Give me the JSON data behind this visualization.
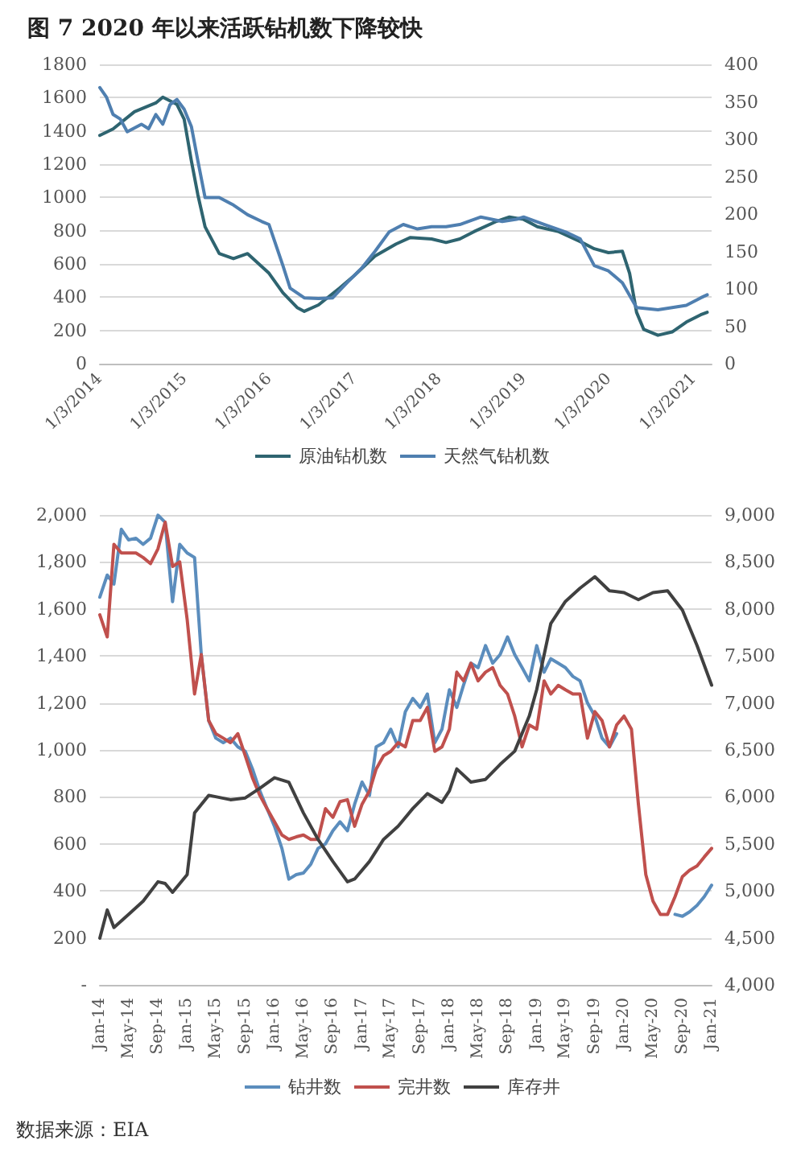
{
  "chart_data": [
    {
      "type": "line",
      "title": "图 7 2020 年以来活跃钻机数下降较快",
      "legend": "bottom",
      "grid": "y",
      "marker": "none",
      "line_style": "solid",
      "xlim": [
        "2014-01-03",
        "2021-03-20"
      ],
      "xticks": [
        {
          "value": "2014-01-03",
          "label": "1/3/2014"
        },
        {
          "value": "2015-01-03",
          "label": "1/3/2015"
        },
        {
          "value": "2016-01-03",
          "label": "1/3/2016"
        },
        {
          "value": "2017-01-03",
          "label": "1/3/2017"
        },
        {
          "value": "2018-01-03",
          "label": "1/3/2018"
        },
        {
          "value": "2019-01-03",
          "label": "1/3/2019"
        },
        {
          "value": "2020-01-03",
          "label": "1/3/2020"
        },
        {
          "value": "2021-01-03",
          "label": "1/3/2021"
        }
      ],
      "ylim": [
        0,
        1800
      ],
      "yticks": [
        0,
        200,
        400,
        600,
        800,
        1000,
        1200,
        1400,
        1600,
        1800
      ],
      "y2lim": [
        0,
        400
      ],
      "y2ticks": [
        0,
        50,
        100,
        150,
        200,
        250,
        300,
        350,
        400
      ],
      "series": [
        {
          "name": "原油钻机数",
          "color": "#2e6470",
          "x": [
            "2014-01-03",
            "2014-03",
            "2014-06",
            "2014-09",
            "2014-10",
            "2014-12",
            "2015-01",
            "2015-02",
            "2015-03",
            "2015-04",
            "2015-06",
            "2015-08",
            "2015-10",
            "2016-01",
            "2016-03",
            "2016-05",
            "2016-06",
            "2016-08",
            "2016-11",
            "2017-01",
            "2017-04",
            "2017-07",
            "2017-09",
            "2017-12",
            "2018-02",
            "2018-04",
            "2018-06",
            "2018-09",
            "2018-11",
            "2019-01",
            "2019-03",
            "2019-06",
            "2019-09",
            "2019-11",
            "2020-01",
            "2020-03",
            "2020-04",
            "2020-05",
            "2020-06",
            "2020-08",
            "2020-10",
            "2020-12",
            "2021-02",
            "2021-03"
          ],
          "values": [
            1373,
            1412,
            1515,
            1568,
            1603,
            1559,
            1470,
            1220,
            1015,
            823,
            662,
            632,
            662,
            544,
            426,
            338,
            315,
            353,
            456,
            529,
            647,
            720,
            759,
            750,
            729,
            750,
            794,
            853,
            882,
            868,
            824,
            794,
            735,
            691,
            668,
            676,
            544,
            309,
            206,
            171,
            191,
            250,
            294,
            309
          ]
        },
        {
          "name": "天然气钻机数",
          "color": "#4f7fb0",
          "axis": "y2",
          "x": [
            "2014-01-03",
            "2014-02",
            "2014-03",
            "2014-04",
            "2014-05",
            "2014-07",
            "2014-08",
            "2014-09",
            "2014-10",
            "2014-11",
            "2014-12",
            "2015-01",
            "2015-02",
            "2015-03",
            "2015-04",
            "2015-06",
            "2015-08",
            "2015-10",
            "2015-12",
            "2016-01",
            "2016-03",
            "2016-04",
            "2016-06",
            "2016-08",
            "2016-10",
            "2016-12",
            "2017-02",
            "2017-04",
            "2017-06",
            "2017-08",
            "2017-10",
            "2017-12",
            "2018-02",
            "2018-04",
            "2018-07",
            "2018-10",
            "2018-12",
            "2019-01",
            "2019-04",
            "2019-07",
            "2019-09",
            "2019-11",
            "2020-01",
            "2020-03",
            "2020-05",
            "2020-08",
            "2020-10",
            "2020-12",
            "2021-02",
            "2021-03"
          ],
          "values": [
            369,
            356,
            333,
            327,
            310,
            320,
            314,
            333,
            320,
            346,
            353,
            340,
            317,
            271,
            222,
            222,
            212,
            199,
            190,
            186,
            131,
            101,
            88,
            87,
            88,
            108,
            127,
            150,
            176,
            186,
            180,
            183,
            183,
            186,
            196,
            190,
            193,
            196,
            186,
            176,
            167,
            131,
            124,
            108,
            75,
            72,
            75,
            78,
            88,
            92
          ]
        }
      ]
    },
    {
      "type": "line",
      "legend": "bottom",
      "grid": "y",
      "marker": "none",
      "line_style": "solid",
      "annotations": [
        "数据来源：EIA"
      ],
      "xlim": [
        "2014-01",
        "2021-01"
      ],
      "xticks": [
        {
          "value": "2014-01",
          "label": "Jan-14"
        },
        {
          "value": "2014-05",
          "label": "May-14"
        },
        {
          "value": "2014-09",
          "label": "Sep-14"
        },
        {
          "value": "2015-01",
          "label": "Jan-15"
        },
        {
          "value": "2015-05",
          "label": "May-15"
        },
        {
          "value": "2015-09",
          "label": "Sep-15"
        },
        {
          "value": "2016-01",
          "label": "Jan-16"
        },
        {
          "value": "2016-05",
          "label": "May-16"
        },
        {
          "value": "2016-09",
          "label": "Sep-16"
        },
        {
          "value": "2017-01",
          "label": "Jan-17"
        },
        {
          "value": "2017-05",
          "label": "May-17"
        },
        {
          "value": "2017-09",
          "label": "Sep-17"
        },
        {
          "value": "2018-01",
          "label": "Jan-18"
        },
        {
          "value": "2018-05",
          "label": "May-18"
        },
        {
          "value": "2018-09",
          "label": "Sep-18"
        },
        {
          "value": "2019-01",
          "label": "Jan-19"
        },
        {
          "value": "2019-05",
          "label": "May-19"
        },
        {
          "value": "2019-09",
          "label": "Sep-19"
        },
        {
          "value": "2020-01",
          "label": "Jan-20"
        },
        {
          "value": "2020-05",
          "label": "May-20"
        },
        {
          "value": "2020-09",
          "label": "Sep-20"
        },
        {
          "value": "2021-01",
          "label": "Jan-21"
        }
      ],
      "ylim": [
        0,
        2000
      ],
      "yticks": [
        {
          "value": 0,
          "label": "-"
        },
        {
          "value": 200,
          "label": "200"
        },
        {
          "value": 400,
          "label": "400"
        },
        {
          "value": 600,
          "label": "600"
        },
        {
          "value": 800,
          "label": "800"
        },
        {
          "value": 1000,
          "label": "1,000"
        },
        {
          "value": 1200,
          "label": "1,200"
        },
        {
          "value": 1400,
          "label": "1,400"
        },
        {
          "value": 1600,
          "label": "1,600"
        },
        {
          "value": 1800,
          "label": "1,800"
        },
        {
          "value": 2000,
          "label": "2,000"
        }
      ],
      "y2lim": [
        4000,
        9000
      ],
      "y2ticks": [
        {
          "value": 4000,
          "label": "4,000"
        },
        {
          "value": 4500,
          "label": "4,500"
        },
        {
          "value": 5000,
          "label": "5,000"
        },
        {
          "value": 5500,
          "label": "5,500"
        },
        {
          "value": 6000,
          "label": "6,000"
        },
        {
          "value": 6500,
          "label": "6,500"
        },
        {
          "value": 7000,
          "label": "7,000"
        },
        {
          "value": 7500,
          "label": "7,500"
        },
        {
          "value": 8000,
          "label": "8,000"
        },
        {
          "value": 8500,
          "label": "8,500"
        },
        {
          "value": 9000,
          "label": "9,000"
        }
      ],
      "x": [
        "2014-01",
        "2014-02",
        "2014-03",
        "2014-04",
        "2014-05",
        "2014-06",
        "2014-07",
        "2014-08",
        "2014-09",
        "2014-10",
        "2014-11",
        "2014-12",
        "2015-01",
        "2015-02",
        "2015-03",
        "2015-04",
        "2015-05",
        "2015-06",
        "2015-07",
        "2015-08",
        "2015-09",
        "2015-10",
        "2015-11",
        "2015-12",
        "2016-01",
        "2016-02",
        "2016-03",
        "2016-04",
        "2016-05",
        "2016-06",
        "2016-07",
        "2016-08",
        "2016-09",
        "2016-10",
        "2016-11",
        "2016-12",
        "2017-01",
        "2017-02",
        "2017-03",
        "2017-04",
        "2017-05",
        "2017-06",
        "2017-07",
        "2017-08",
        "2017-09",
        "2017-10",
        "2017-11",
        "2017-12",
        "2018-01",
        "2018-02",
        "2018-03",
        "2018-04",
        "2018-05",
        "2018-06",
        "2018-07",
        "2018-08",
        "2018-09",
        "2018-10",
        "2018-11",
        "2018-12",
        "2019-01",
        "2019-02",
        "2019-03",
        "2019-04",
        "2019-05",
        "2019-06",
        "2019-07",
        "2019-08",
        "2019-09",
        "2019-10",
        "2019-11",
        "2019-12",
        "2020-01",
        "2020-02",
        "2020-03",
        "2020-04",
        "2020-05",
        "2020-06",
        "2020-07",
        "2020-08",
        "2020-09",
        "2020-10",
        "2020-11",
        "2020-12",
        "2021-01"
      ],
      "series": [
        {
          "name": "钻井数",
          "color": "#5b8dbd",
          "values": [
            1650,
            1744,
            1706,
            1939,
            1894,
            1901,
            1875,
            1901,
            1999,
            1969,
            1631,
            1875,
            1838,
            1819,
            1406,
            1125,
            1050,
            1031,
            1050,
            1013,
            994,
            919,
            825,
            750,
            675,
            581,
            450,
            469,
            476,
            514,
            581,
            600,
            656,
            694,
            656,
            769,
            863,
            806,
            1013,
            1031,
            1088,
            1013,
            1163,
            1219,
            1181,
            1238,
            1031,
            1088,
            1256,
            1181,
            1275,
            1369,
            1350,
            1444,
            1369,
            1406,
            1481,
            1406,
            1350,
            1294,
            1444,
            1331,
            1388,
            1369,
            1350,
            1313,
            1294,
            1200,
            1144,
            1050,
            1013,
            1069,
            null,
            null,
            null,
            null,
            null,
            null,
            null,
            300,
            292,
            311,
            338,
            375,
            424
          ]
        },
        {
          "name": "完井数",
          "color": "#c0504d",
          "values": [
            1575,
            1481,
            1875,
            1838,
            1838,
            1838,
            1819,
            1793,
            1856,
            1969,
            1781,
            1800,
            1556,
            1238,
            1406,
            1125,
            1069,
            1050,
            1031,
            1069,
            975,
            881,
            806,
            750,
            694,
            638,
            619,
            630,
            638,
            619,
            619,
            750,
            713,
            780,
            788,
            675,
            769,
            825,
            919,
            975,
            994,
            1031,
            1013,
            1125,
            1125,
            1181,
            994,
            1013,
            1088,
            1331,
            1294,
            1369,
            1294,
            1331,
            1350,
            1275,
            1238,
            1144,
            1013,
            1106,
            1088,
            1294,
            1238,
            1275,
            1256,
            1238,
            1238,
            1050,
            1163,
            1125,
            1013,
            1106,
            1144,
            1088,
            769,
            469,
            356,
            300,
            300,
            375,
            461,
            488,
            506,
            544,
            581
          ]
        },
        {
          "name": "库存井",
          "color": "#404040",
          "axis": "y2",
          "x": [
            "2014-01",
            "2014-02",
            "2014-03",
            "2014-05",
            "2014-07",
            "2014-09",
            "2014-10",
            "2014-11",
            "2015-01",
            "2015-02",
            "2015-04",
            "2015-07",
            "2015-09",
            "2015-11",
            "2016-01",
            "2016-03",
            "2016-05",
            "2016-07",
            "2016-09",
            "2016-11",
            "2016-12",
            "2017-02",
            "2017-04",
            "2017-06",
            "2017-08",
            "2017-10",
            "2017-12",
            "2018-01",
            "2018-02",
            "2018-04",
            "2018-06",
            "2018-08",
            "2018-10",
            "2018-12",
            "2019-01",
            "2019-03",
            "2019-05",
            "2019-07",
            "2019-09",
            "2019-11",
            "2020-01",
            "2020-03",
            "2020-05",
            "2020-07",
            "2020-09",
            "2020-11",
            "2021-01"
          ],
          "values": [
            4497,
            4797,
            4610,
            4750,
            4891,
            5097,
            5079,
            4985,
            5173,
            5829,
            6017,
            5970,
            5989,
            6092,
            6204,
            6157,
            5829,
            5548,
            5313,
            5097,
            5126,
            5313,
            5548,
            5688,
            5876,
            6035,
            5942,
            6064,
            6298,
            6157,
            6186,
            6345,
            6486,
            6861,
            7142,
            7846,
            8080,
            8221,
            8343,
            8193,
            8174,
            8099,
            8174,
            8193,
            7987,
            7611,
            7189
          ]
        }
      ]
    }
  ]
}
